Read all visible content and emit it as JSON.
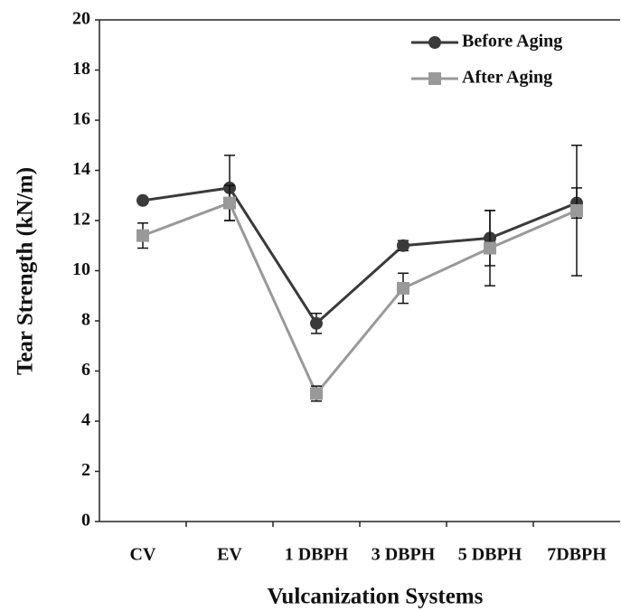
{
  "chart_data": {
    "type": "line",
    "x_label": "Vulcanization Systems",
    "y_label": "Tear Strength (kN/m)",
    "categories": [
      "CV",
      "EV",
      "1 DBPH",
      "3 DBPH",
      "5 DBPH",
      "7DBPH"
    ],
    "series": [
      {
        "name": "Before Aging",
        "color": "#3a3a3a",
        "marker": "circle",
        "values": [
          12.8,
          13.3,
          7.9,
          11.0,
          11.3,
          12.7
        ],
        "errors": [
          0.1,
          1.3,
          0.4,
          0.2,
          1.1,
          0.6
        ]
      },
      {
        "name": "After Aging",
        "color": "#999999",
        "marker": "square",
        "values": [
          11.4,
          12.7,
          5.1,
          9.3,
          10.9,
          12.4
        ],
        "errors": [
          0.5,
          0.7,
          0.3,
          0.6,
          1.5,
          2.6
        ]
      }
    ],
    "ylim": [
      0,
      20
    ],
    "yticks": [
      0,
      2,
      4,
      6,
      8,
      10,
      12,
      14,
      16,
      18,
      20
    ],
    "grid": false,
    "legend": "upper right"
  }
}
